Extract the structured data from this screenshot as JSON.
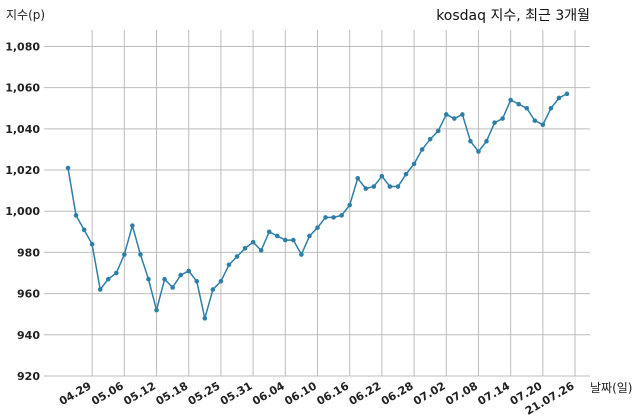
{
  "chart_data": {
    "type": "line",
    "title": "kosdaq 지수, 최근 3개월",
    "xlabel": "날짜(일)",
    "ylabel": "지수(p)",
    "ylim": [
      920,
      1088
    ],
    "yticks": [
      920,
      940,
      960,
      980,
      1000,
      1020,
      1040,
      1060,
      1080
    ],
    "ytick_labels": [
      "920",
      "940",
      "960",
      "980",
      "1,000",
      "1,020",
      "1,040",
      "1,060",
      "1,080"
    ],
    "grid": true,
    "x_tick_labels": [
      {
        "index": 3,
        "label": "04.29"
      },
      {
        "index": 7,
        "label": "05.06"
      },
      {
        "index": 11,
        "label": "05.12"
      },
      {
        "index": 15,
        "label": "05.18"
      },
      {
        "index": 19,
        "label": "05.25"
      },
      {
        "index": 23,
        "label": "05.31"
      },
      {
        "index": 27,
        "label": "06.04"
      },
      {
        "index": 31,
        "label": "06.10"
      },
      {
        "index": 35,
        "label": "06.16"
      },
      {
        "index": 39,
        "label": "06.22"
      },
      {
        "index": 43,
        "label": "06.28"
      },
      {
        "index": 47,
        "label": "07.02"
      },
      {
        "index": 51,
        "label": "07.08"
      },
      {
        "index": 55,
        "label": "07.14"
      },
      {
        "index": 59,
        "label": "07.20"
      },
      {
        "index": 63,
        "label": "21.07.26"
      }
    ],
    "series": [
      {
        "color": "#2e7fa8",
        "values": [
          1021,
          998,
          991,
          984,
          962,
          967,
          970,
          979,
          993,
          979,
          967,
          952,
          967,
          963,
          969,
          971,
          966,
          948,
          962,
          966,
          974,
          978,
          982,
          985,
          981,
          990,
          988,
          986,
          986,
          979,
          988,
          992,
          997,
          997,
          998,
          1003,
          1016,
          1011,
          1012,
          1017,
          1012,
          1012,
          1018,
          1023,
          1030,
          1035,
          1039,
          1047,
          1045,
          1047,
          1034,
          1029,
          1034,
          1043,
          1045,
          1054,
          1052,
          1050,
          1044,
          1042,
          1050,
          1055,
          1057
        ]
      }
    ]
  }
}
